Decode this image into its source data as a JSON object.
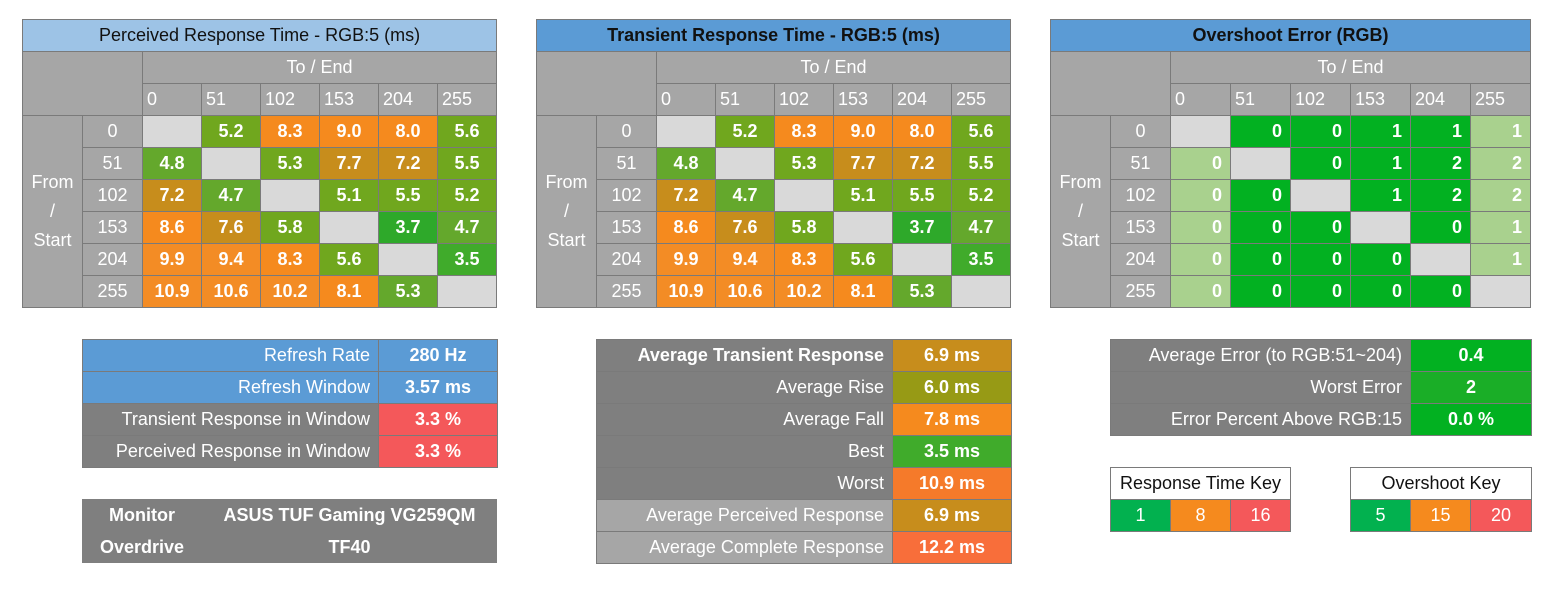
{
  "perceived": {
    "title": "Perceived Response Time - RGB:5 (ms)",
    "to_end": "To / End",
    "from_start": [
      "From",
      "/",
      "Start"
    ],
    "cols": [
      "0",
      "51",
      "102",
      "153",
      "204",
      "255"
    ],
    "rows": [
      {
        "label": "0",
        "cells": [
          "",
          "5.2",
          "8.3",
          "9.0",
          "8.0",
          "5.6"
        ]
      },
      {
        "label": "51",
        "cells": [
          "4.8",
          "",
          "5.3",
          "7.7",
          "7.2",
          "5.5"
        ]
      },
      {
        "label": "102",
        "cells": [
          "7.2",
          "4.7",
          "",
          "5.1",
          "5.5",
          "5.2"
        ]
      },
      {
        "label": "153",
        "cells": [
          "8.6",
          "7.6",
          "5.8",
          "",
          "3.7",
          "4.7"
        ]
      },
      {
        "label": "204",
        "cells": [
          "9.9",
          "9.4",
          "8.3",
          "5.6",
          "",
          "3.5"
        ]
      },
      {
        "label": "255",
        "cells": [
          "10.9",
          "10.6",
          "10.2",
          "8.1",
          "5.3",
          ""
        ]
      }
    ]
  },
  "transient": {
    "title": "Transient Response Time - RGB:5 (ms)",
    "to_end": "To / End",
    "from_start": [
      "From",
      "/",
      "Start"
    ],
    "cols": [
      "0",
      "51",
      "102",
      "153",
      "204",
      "255"
    ],
    "rows": [
      {
        "label": "0",
        "cells": [
          "",
          "5.2",
          "8.3",
          "9.0",
          "8.0",
          "5.6"
        ]
      },
      {
        "label": "51",
        "cells": [
          "4.8",
          "",
          "5.3",
          "7.7",
          "7.2",
          "5.5"
        ]
      },
      {
        "label": "102",
        "cells": [
          "7.2",
          "4.7",
          "",
          "5.1",
          "5.5",
          "5.2"
        ]
      },
      {
        "label": "153",
        "cells": [
          "8.6",
          "7.6",
          "5.8",
          "",
          "3.7",
          "4.7"
        ]
      },
      {
        "label": "204",
        "cells": [
          "9.9",
          "9.4",
          "8.3",
          "5.6",
          "",
          "3.5"
        ]
      },
      {
        "label": "255",
        "cells": [
          "10.9",
          "10.6",
          "10.2",
          "8.1",
          "5.3",
          ""
        ]
      }
    ]
  },
  "overshoot": {
    "title": "Overshoot Error (RGB)",
    "to_end": "To / End",
    "from_start": [
      "From",
      "/",
      "Start"
    ],
    "cols": [
      "0",
      "51",
      "102",
      "153",
      "204",
      "255"
    ],
    "rows": [
      {
        "label": "0",
        "cells": [
          "",
          "0",
          "0",
          "1",
          "1",
          "1"
        ]
      },
      {
        "label": "51",
        "cells": [
          "0",
          "",
          "0",
          "1",
          "2",
          "2"
        ]
      },
      {
        "label": "102",
        "cells": [
          "0",
          "0",
          "",
          "1",
          "2",
          "2"
        ]
      },
      {
        "label": "153",
        "cells": [
          "0",
          "0",
          "0",
          "",
          "0",
          "1"
        ]
      },
      {
        "label": "204",
        "cells": [
          "0",
          "0",
          "0",
          "0",
          "",
          "1"
        ]
      },
      {
        "label": "255",
        "cells": [
          "0",
          "0",
          "0",
          "0",
          "0",
          ""
        ]
      }
    ]
  },
  "refresh": {
    "rows": [
      {
        "label": "Refresh Rate",
        "value": "280 Hz"
      },
      {
        "label": "Refresh Window",
        "value": "3.57 ms"
      },
      {
        "label": "Transient Response in Window",
        "value": "3.3 %"
      },
      {
        "label": "Perceived Response in Window",
        "value": "3.3 %"
      }
    ]
  },
  "monitor": {
    "monitor_label": "Monitor",
    "monitor_value": "ASUS TUF Gaming VG259QM",
    "overdrive_label": "Overdrive",
    "overdrive_value": "TF40"
  },
  "averages": {
    "rows": [
      {
        "label": "Average Transient Response",
        "value": "6.9 ms"
      },
      {
        "label": "Average Rise",
        "value": "6.0 ms"
      },
      {
        "label": "Average Fall",
        "value": "7.8 ms"
      },
      {
        "label": "Best",
        "value": "3.5 ms"
      },
      {
        "label": "Worst",
        "value": "10.9 ms"
      },
      {
        "label": "Average Perceived Response",
        "value": "6.9 ms"
      },
      {
        "label": "Average Complete Response",
        "value": "12.2 ms"
      }
    ]
  },
  "errors": {
    "rows": [
      {
        "label": "Average Error (to RGB:51~204)",
        "value": "0.4"
      },
      {
        "label": "Worst Error",
        "value": "2"
      },
      {
        "label": "Error Percent Above RGB:15",
        "value": "0.0 %"
      }
    ]
  },
  "response_key": {
    "title": "Response Time Key",
    "values": [
      "1",
      "8",
      "16"
    ]
  },
  "overshoot_key": {
    "title": "Overshoot Key",
    "values": [
      "5",
      "15",
      "20"
    ]
  },
  "colors": {
    "title_light": "#9dc3e6",
    "title_dark": "#5b9bd5",
    "header_gray": "#a6a6a6",
    "diag": "#d9d9d9",
    "green": "#02b121",
    "orange": "#f58a1e",
    "red": "#f4585a"
  }
}
